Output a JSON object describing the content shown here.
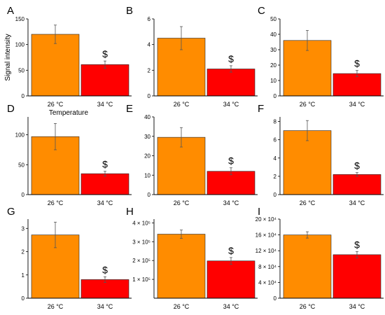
{
  "chart_data": [
    {
      "type": "bar",
      "panel_label": "A",
      "categories": [
        "26 °C",
        "34 °C"
      ],
      "values": [
        120,
        61
      ],
      "errors": [
        18,
        7
      ],
      "ylim": [
        0,
        150
      ],
      "ticks": [
        0,
        50,
        100,
        150
      ],
      "tick_labels": [
        "0",
        "50",
        "100",
        "150"
      ],
      "ylabel": "Signal intensity",
      "xlabel": "Temperature",
      "annotations": [
        "",
        "$"
      ]
    },
    {
      "type": "bar",
      "panel_label": "B",
      "categories": [
        "26 °C",
        "34 °C"
      ],
      "values": [
        4.5,
        2.1
      ],
      "errors": [
        0.9,
        0.25
      ],
      "ylim": [
        0,
        6
      ],
      "ticks": [
        0,
        2,
        4,
        6
      ],
      "tick_labels": [
        "0",
        "2",
        "4",
        "6"
      ],
      "annotations": [
        "",
        "$"
      ]
    },
    {
      "type": "bar",
      "panel_label": "C",
      "categories": [
        "26 °C",
        "34 °C"
      ],
      "values": [
        36,
        14.5
      ],
      "errors": [
        6.5,
        2
      ],
      "ylim": [
        0,
        50
      ],
      "ticks": [
        0,
        10,
        20,
        30,
        40,
        50
      ],
      "tick_labels": [
        "0",
        "10",
        "20",
        "30",
        "40",
        "50"
      ],
      "annotations": [
        "",
        "$"
      ]
    },
    {
      "type": "bar",
      "panel_label": "D",
      "categories": [
        "26 °C",
        "34 °C"
      ],
      "values": [
        97,
        35
      ],
      "errors": [
        22,
        4
      ],
      "ylim": [
        0,
        130
      ],
      "ticks": [
        0,
        50,
        100
      ],
      "tick_labels": [
        "0",
        "50",
        "100"
      ],
      "annotations": [
        "",
        "$"
      ]
    },
    {
      "type": "bar",
      "panel_label": "E",
      "categories": [
        "26 °C",
        "34 °C"
      ],
      "values": [
        29.5,
        12
      ],
      "errors": [
        5,
        1.8
      ],
      "ylim": [
        0,
        40
      ],
      "ticks": [
        0,
        10,
        20,
        30,
        40
      ],
      "tick_labels": [
        "0",
        "10",
        "20",
        "30",
        "40"
      ],
      "annotations": [
        "",
        "$"
      ]
    },
    {
      "type": "bar",
      "panel_label": "F",
      "categories": [
        "26 °C",
        "34 °C"
      ],
      "values": [
        7,
        2.2
      ],
      "errors": [
        1.1,
        0.2
      ],
      "ylim": [
        0,
        8.5
      ],
      "ticks": [
        0,
        2,
        4,
        6,
        8
      ],
      "tick_labels": [
        "0",
        "2",
        "4",
        "6",
        "8"
      ],
      "annotations": [
        "",
        "$"
      ]
    },
    {
      "type": "bar",
      "panel_label": "G",
      "categories": [
        "26 °C",
        "34 °C"
      ],
      "values": [
        2.72,
        0.8
      ],
      "errors": [
        0.55,
        0.12
      ],
      "ylim": [
        0,
        3.4
      ],
      "ticks": [
        0,
        1,
        2,
        3
      ],
      "tick_labels": [
        "0",
        "1",
        "2",
        "3"
      ],
      "annotations": [
        "",
        "$"
      ]
    },
    {
      "type": "bar",
      "panel_label": "H",
      "categories": [
        "26 °C",
        "34 °C"
      ],
      "values": [
        340000,
        198000
      ],
      "errors": [
        22000,
        18000
      ],
      "ylim": [
        0,
        420000
      ],
      "ticks": [
        100000,
        200000,
        300000,
        400000
      ],
      "tick_labels": [
        "1 × 10⁵",
        "2 × 10⁵",
        "3 × 10⁵",
        "4 × 10⁵"
      ],
      "annotations": [
        "",
        "$"
      ]
    },
    {
      "type": "bar",
      "panel_label": "I",
      "categories": [
        "26 °C",
        "34 °C"
      ],
      "values": [
        160000,
        110000
      ],
      "errors": [
        8000,
        8000
      ],
      "ylim": [
        0,
        200000
      ],
      "ticks": [
        0,
        40000,
        80000,
        120000,
        160000,
        200000
      ],
      "tick_labels": [
        "0",
        "4 × 10⁴",
        "8 × 10⁴",
        "12 × 10⁴",
        "16 × 10⁴",
        "20 × 10⁴"
      ],
      "annotations": [
        "",
        "$"
      ]
    }
  ],
  "colors": {
    "bar_26": "#ff8c00",
    "bar_34": "#ff0000",
    "axis": "#000000",
    "error_bar": "#555555"
  }
}
